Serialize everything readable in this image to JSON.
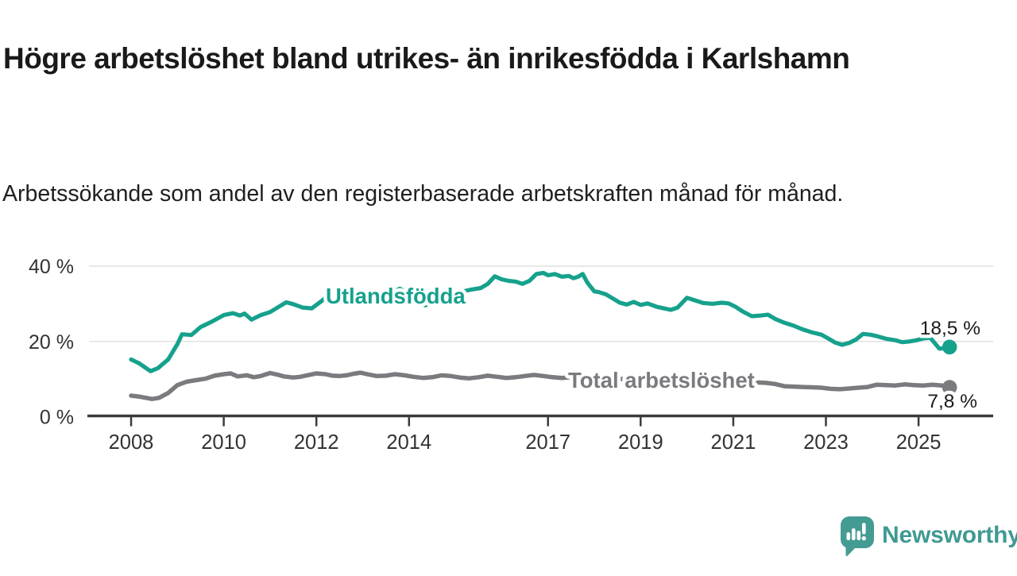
{
  "title": "Högre arbetslöshet bland utrikes- än inrikesfödda i Karlshamn",
  "subtitle": "Arbetssökande som andel av den registerbaserade arbetskraften månad för månad.",
  "branding": {
    "logo_text": "Newsworthy",
    "logo_color": "#449b93",
    "logo_text_color": "#3f9a92",
    "logo_icon": "bar-chart-exclamation-speech-bubble"
  },
  "chart_data": {
    "type": "line",
    "title": "Högre arbetslöshet bland utrikes- än inrikesfödda i Karlshamn",
    "subtitle": "Arbetssökande som andel av den registerbaserade arbetskraften månad för månad.",
    "grid": "horizontal",
    "legend_position": "inline-labels-on-lines",
    "colors": {
      "axis": "#3b3b3b",
      "gridline": "#e1e1e1",
      "tick_label": "#333333",
      "value_label": "#1a1a1a"
    },
    "x_axis": {
      "range": [
        2007.9,
        2026.2
      ],
      "ticks": [
        2008,
        2010,
        2012,
        2014,
        2017,
        2019,
        2021,
        2023,
        2025
      ],
      "tick_labels": [
        "2008",
        "2010",
        "2012",
        "2014",
        "2017",
        "2019",
        "2021",
        "2023",
        "2025"
      ]
    },
    "y_axis": {
      "range": [
        0,
        40
      ],
      "unit": "%",
      "ticks": [
        0,
        20,
        40
      ],
      "tick_labels": [
        "0 %",
        "20 %",
        "40 %"
      ]
    },
    "series": [
      {
        "name": "Total arbetslöshet",
        "color": "#7b7a7e",
        "end_value": 7.8,
        "end_label": "7,8 %",
        "points": [
          [
            2008.0,
            5.6
          ],
          [
            2008.2,
            5.3
          ],
          [
            2008.45,
            4.7
          ],
          [
            2008.6,
            5.0
          ],
          [
            2008.8,
            6.3
          ],
          [
            2009.0,
            8.4
          ],
          [
            2009.2,
            9.3
          ],
          [
            2009.4,
            9.7
          ],
          [
            2009.6,
            10.1
          ],
          [
            2009.8,
            10.9
          ],
          [
            2010.0,
            11.3
          ],
          [
            2010.15,
            11.5
          ],
          [
            2010.3,
            10.7
          ],
          [
            2010.5,
            11.0
          ],
          [
            2010.65,
            10.5
          ],
          [
            2010.8,
            10.8
          ],
          [
            2011.0,
            11.6
          ],
          [
            2011.15,
            11.2
          ],
          [
            2011.3,
            10.7
          ],
          [
            2011.5,
            10.4
          ],
          [
            2011.65,
            10.6
          ],
          [
            2011.8,
            11.0
          ],
          [
            2012.0,
            11.5
          ],
          [
            2012.2,
            11.3
          ],
          [
            2012.35,
            10.9
          ],
          [
            2012.5,
            10.8
          ],
          [
            2012.65,
            11.0
          ],
          [
            2012.8,
            11.4
          ],
          [
            2012.95,
            11.7
          ],
          [
            2013.1,
            11.3
          ],
          [
            2013.3,
            10.8
          ],
          [
            2013.5,
            10.9
          ],
          [
            2013.7,
            11.3
          ],
          [
            2013.9,
            11.0
          ],
          [
            2014.1,
            10.6
          ],
          [
            2014.3,
            10.3
          ],
          [
            2014.5,
            10.5
          ],
          [
            2014.7,
            11.0
          ],
          [
            2014.9,
            10.8
          ],
          [
            2015.1,
            10.4
          ],
          [
            2015.3,
            10.2
          ],
          [
            2015.5,
            10.5
          ],
          [
            2015.7,
            10.9
          ],
          [
            2015.9,
            10.6
          ],
          [
            2016.1,
            10.3
          ],
          [
            2016.3,
            10.5
          ],
          [
            2016.5,
            10.8
          ],
          [
            2016.7,
            11.1
          ],
          [
            2016.9,
            10.8
          ],
          [
            2017.1,
            10.5
          ],
          [
            2017.3,
            10.3
          ],
          [
            2017.5,
            10.5
          ],
          [
            2017.7,
            10.8
          ],
          [
            2017.9,
            10.4
          ],
          [
            2018.1,
            10.0
          ],
          [
            2018.3,
            9.7
          ],
          [
            2018.5,
            9.9
          ],
          [
            2018.7,
            10.2
          ],
          [
            2018.9,
            9.9
          ],
          [
            2019.1,
            9.6
          ],
          [
            2019.3,
            9.4
          ],
          [
            2019.5,
            9.6
          ],
          [
            2019.7,
            9.8
          ],
          [
            2019.9,
            10.0
          ],
          [
            2020.1,
            10.4
          ],
          [
            2020.3,
            10.2
          ],
          [
            2020.5,
            10.0
          ],
          [
            2020.7,
            10.1
          ],
          [
            2020.9,
            9.9
          ],
          [
            2021.1,
            9.6
          ],
          [
            2021.3,
            9.3
          ],
          [
            2021.5,
            9.1
          ],
          [
            2021.7,
            9.0
          ],
          [
            2021.9,
            8.7
          ],
          [
            2022.1,
            8.1
          ],
          [
            2022.3,
            8.0
          ],
          [
            2022.5,
            7.9
          ],
          [
            2022.7,
            7.8
          ],
          [
            2022.9,
            7.7
          ],
          [
            2023.1,
            7.4
          ],
          [
            2023.3,
            7.3
          ],
          [
            2023.5,
            7.5
          ],
          [
            2023.7,
            7.7
          ],
          [
            2023.9,
            7.9
          ],
          [
            2024.1,
            8.5
          ],
          [
            2024.3,
            8.4
          ],
          [
            2024.5,
            8.3
          ],
          [
            2024.7,
            8.6
          ],
          [
            2024.9,
            8.4
          ],
          [
            2025.1,
            8.3
          ],
          [
            2025.3,
            8.5
          ],
          [
            2025.5,
            8.3
          ],
          [
            2025.67,
            7.8
          ]
        ]
      },
      {
        "name": "Utlandsfödda",
        "color": "#16a18d",
        "end_value": 18.5,
        "end_label": "18,5 %",
        "points": [
          [
            2008.0,
            15.2
          ],
          [
            2008.17,
            14.2
          ],
          [
            2008.42,
            12.1
          ],
          [
            2008.58,
            12.9
          ],
          [
            2008.8,
            15.2
          ],
          [
            2009.0,
            19.3
          ],
          [
            2009.1,
            21.9
          ],
          [
            2009.3,
            21.7
          ],
          [
            2009.5,
            23.8
          ],
          [
            2009.75,
            25.3
          ],
          [
            2010.0,
            27.0
          ],
          [
            2010.2,
            27.5
          ],
          [
            2010.35,
            26.9
          ],
          [
            2010.45,
            27.4
          ],
          [
            2010.6,
            25.8
          ],
          [
            2010.8,
            27.0
          ],
          [
            2011.0,
            27.8
          ],
          [
            2011.2,
            29.3
          ],
          [
            2011.35,
            30.4
          ],
          [
            2011.5,
            29.9
          ],
          [
            2011.7,
            29.0
          ],
          [
            2011.9,
            28.8
          ],
          [
            2012.1,
            30.6
          ],
          [
            2012.3,
            32.7
          ],
          [
            2012.45,
            32.0
          ],
          [
            2012.6,
            31.4
          ],
          [
            2012.8,
            30.4
          ],
          [
            2012.95,
            30.2
          ],
          [
            2013.1,
            30.7
          ],
          [
            2013.35,
            31.6
          ],
          [
            2013.6,
            32.8
          ],
          [
            2013.8,
            34.0
          ],
          [
            2014.0,
            32.6
          ],
          [
            2014.2,
            30.2
          ],
          [
            2014.35,
            29.6
          ],
          [
            2014.6,
            30.9
          ],
          [
            2014.85,
            32.1
          ],
          [
            2015.1,
            33.1
          ],
          [
            2015.35,
            33.8
          ],
          [
            2015.55,
            34.2
          ],
          [
            2015.7,
            35.3
          ],
          [
            2015.85,
            37.3
          ],
          [
            2016.0,
            36.5
          ],
          [
            2016.15,
            36.1
          ],
          [
            2016.3,
            35.9
          ],
          [
            2016.45,
            35.3
          ],
          [
            2016.6,
            36.1
          ],
          [
            2016.75,
            37.9
          ],
          [
            2016.9,
            38.2
          ],
          [
            2017.0,
            37.6
          ],
          [
            2017.15,
            37.9
          ],
          [
            2017.3,
            37.2
          ],
          [
            2017.45,
            37.4
          ],
          [
            2017.55,
            36.8
          ],
          [
            2017.65,
            37.2
          ],
          [
            2017.75,
            37.9
          ],
          [
            2017.85,
            35.6
          ],
          [
            2018.0,
            33.3
          ],
          [
            2018.1,
            33.1
          ],
          [
            2018.25,
            32.5
          ],
          [
            2018.4,
            31.4
          ],
          [
            2018.55,
            30.3
          ],
          [
            2018.7,
            29.8
          ],
          [
            2018.85,
            30.5
          ],
          [
            2019.0,
            29.7
          ],
          [
            2019.15,
            30.1
          ],
          [
            2019.35,
            29.2
          ],
          [
            2019.5,
            28.8
          ],
          [
            2019.65,
            28.4
          ],
          [
            2019.8,
            29.0
          ],
          [
            2020.0,
            31.6
          ],
          [
            2020.15,
            31.0
          ],
          [
            2020.35,
            30.2
          ],
          [
            2020.55,
            30.0
          ],
          [
            2020.75,
            30.3
          ],
          [
            2020.9,
            30.1
          ],
          [
            2021.05,
            29.2
          ],
          [
            2021.2,
            28.0
          ],
          [
            2021.4,
            26.7
          ],
          [
            2021.6,
            26.9
          ],
          [
            2021.75,
            27.1
          ],
          [
            2021.9,
            26.0
          ],
          [
            2022.1,
            25.0
          ],
          [
            2022.3,
            24.2
          ],
          [
            2022.5,
            23.2
          ],
          [
            2022.7,
            22.4
          ],
          [
            2022.9,
            21.8
          ],
          [
            2023.05,
            20.8
          ],
          [
            2023.2,
            19.7
          ],
          [
            2023.35,
            19.1
          ],
          [
            2023.5,
            19.6
          ],
          [
            2023.65,
            20.5
          ],
          [
            2023.8,
            22.0
          ],
          [
            2023.95,
            21.8
          ],
          [
            2024.1,
            21.4
          ],
          [
            2024.3,
            20.7
          ],
          [
            2024.5,
            20.3
          ],
          [
            2024.65,
            19.8
          ],
          [
            2024.8,
            20.0
          ],
          [
            2024.95,
            20.3
          ],
          [
            2025.1,
            20.8
          ],
          [
            2025.25,
            21.0
          ],
          [
            2025.45,
            18.1
          ],
          [
            2025.58,
            18.2
          ],
          [
            2025.67,
            18.5
          ]
        ]
      }
    ]
  }
}
